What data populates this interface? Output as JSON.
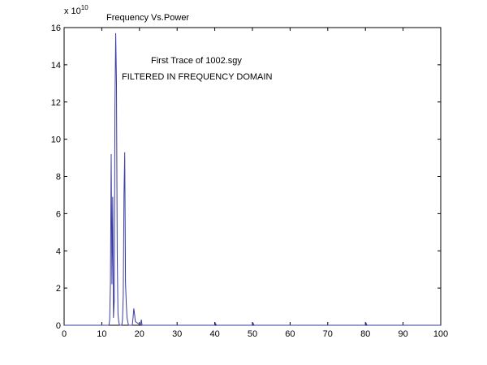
{
  "chart_data": {
    "type": "line",
    "title": "Frequency Vs.Power",
    "xlabel": "",
    "ylabel": "",
    "exponent_label": {
      "base": "x 10",
      "power": "10"
    },
    "annotations": [
      "First Trace of 1002.sgy",
      "FILTERED IN FREQUENCY DOMAIN"
    ],
    "xlim": [
      0,
      100
    ],
    "ylim": [
      0,
      16
    ],
    "x_ticks": [
      0,
      10,
      20,
      30,
      40,
      50,
      60,
      70,
      80,
      90,
      100
    ],
    "y_ticks": [
      0,
      2,
      4,
      6,
      8,
      10,
      12,
      14,
      16
    ],
    "grid": false,
    "line_color": "#3a3aa0",
    "series": [
      {
        "x": [
          0,
          11.9,
          12.1,
          12.3,
          12.5,
          12.7,
          12.9,
          13.1,
          13.3,
          13.5,
          13.7,
          13.9,
          14.1,
          14.3,
          14.5,
          14.7,
          15.3,
          15.5,
          15.7,
          15.9,
          16.1,
          16.3,
          16.5,
          16.7,
          16.9,
          17.1,
          17.3,
          18.1,
          18.3,
          18.5,
          18.7,
          18.9,
          20.3,
          20.5,
          20.7,
          40,
          40.2,
          40.4,
          50,
          50.2,
          50.4,
          80,
          80.2,
          80.4,
          100
        ],
        "y": [
          0,
          0,
          0.3,
          2.3,
          9.2,
          2.2,
          6.9,
          0.4,
          1.3,
          11.8,
          15.7,
          13.0,
          3.9,
          0.6,
          0.2,
          0,
          0,
          0.3,
          1.6,
          7.0,
          9.3,
          2.3,
          1.2,
          0.4,
          0.2,
          0,
          0,
          0,
          0.4,
          0.9,
          0.6,
          0.2,
          0,
          0.3,
          0,
          0,
          0.1,
          0,
          0,
          0.1,
          0,
          0,
          0.1,
          0,
          0
        ]
      }
    ]
  }
}
